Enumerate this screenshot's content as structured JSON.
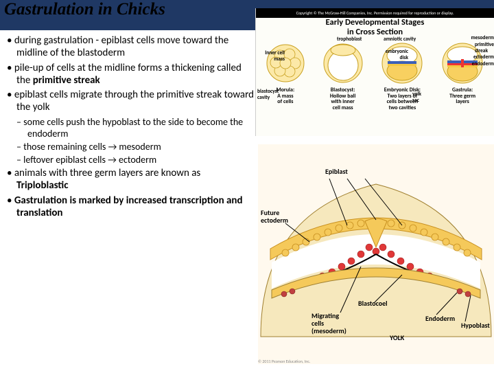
{
  "title": "Gastrulation in Chicks",
  "bullets": [
    {
      "level": 1,
      "runs": [
        {
          "t": "during gastrulation - epiblast cells move toward the midline of the blastoderm"
        }
      ]
    },
    {
      "level": 1,
      "runs": [
        {
          "t": "pile-up of cells at the midline forms a thickening called the "
        },
        {
          "t": "primitive streak",
          "b": true
        }
      ]
    },
    {
      "level": 1,
      "runs": [
        {
          "t": "epiblast cells migrate through the primitive streak toward the yolk"
        }
      ]
    },
    {
      "level": 2,
      "runs": [
        {
          "t": "some cells  push the hypoblast to the side to become the endoderm"
        }
      ]
    },
    {
      "level": 2,
      "runs": [
        {
          "t": "those remaining cells → mesoderm"
        }
      ]
    },
    {
      "level": 2,
      "runs": [
        {
          "t": "leftover epiblast cells → ectoderm"
        }
      ]
    },
    {
      "level": 1,
      "runs": [
        {
          "t": "animals with three germ layers are known as "
        },
        {
          "t": "Triploblastic",
          "b": true
        }
      ]
    },
    {
      "level": 1,
      "runs": [
        {
          "t": "Gastrulation is marked by increased transcription and translation",
          "b": true
        }
      ]
    }
  ],
  "top_figure": {
    "copyright": "Copyright © The McGraw-Hill Companies, Inc. Permission required for reproduction or display.",
    "title_line1": "Early Developmental Stages",
    "title_line2": "in Cross Section",
    "stages": [
      {
        "label": "Morula:\nA mass\nof cells",
        "fill": "#f8e8a8",
        "type": "morula"
      },
      {
        "label": "Blastocyst:\nHollow ball\nwith inner\ncell mass",
        "fill": "#f8e8a8",
        "type": "blastocyst"
      },
      {
        "label": "Embryonic Disk:\nTwo layers of\ncells between\ntwo cavities",
        "fill": "#f8e8a8",
        "type": "disk"
      },
      {
        "label": "Gastrula:\nThree germ\nlayers",
        "fill": "#f8e8a8",
        "type": "gastrula"
      }
    ],
    "labels": {
      "inner_cell_mass": "Inner cell\nmass",
      "blastocyst_cavity": "blastocyst\ncavity",
      "trophoblast": "trophoblast",
      "amniotic_cavity": "amniotic cavity",
      "embryonic_disk": "embryonic\ndisk",
      "yolk_sac": "yolk\nsac",
      "mesoderm": "mesoderm",
      "primitive_streak": "primitive\nstreak",
      "ectoderm": "ectoderm",
      "endoderm": "endoderm"
    },
    "colors": {
      "cell_outline": "#c8a020",
      "cell_fill": "#fce9a8",
      "cavity": "#ffffff",
      "ecto": "#3b5fb8",
      "endo": "#f5c842",
      "meso": "#e33",
      "yolk": "#f8d060"
    }
  },
  "main_diagram": {
    "colors": {
      "bg": "#fff9ee",
      "yolk": "#f6e8bd",
      "yolk_shadow": "#e8d79c",
      "epiblast": "#f5c95a",
      "mesoderm": "#e03838",
      "endoderm": "#c04040",
      "blastocoel": "#ffffff",
      "outline": "#a08030"
    },
    "labels": {
      "epiblast": "Epiblast",
      "future_ectoderm": "Future\nectoderm",
      "migrating": "Migrating\ncells\n(mesoderm)",
      "blastocoel": "Blastocoel",
      "yolk": "YOLK",
      "endoderm": "Endoderm",
      "hypoblast": "Hypoblast"
    },
    "copyright": "© 2011 Pearson Education, Inc."
  }
}
